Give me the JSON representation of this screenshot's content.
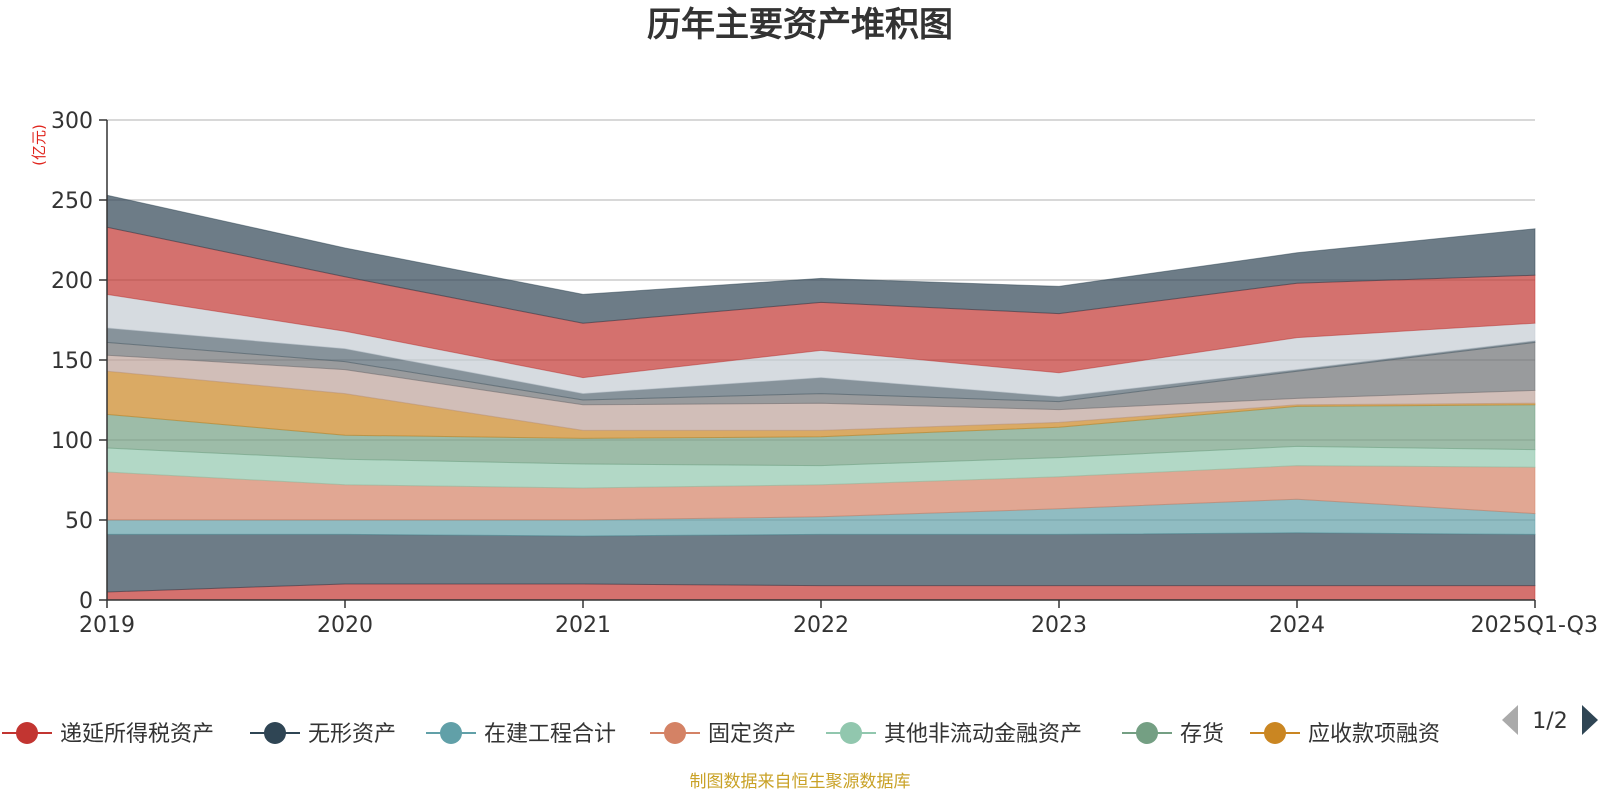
{
  "chart_data": {
    "type": "area",
    "stacked": true,
    "title": "历年主要资产堆积图",
    "unit_label": "(亿元)",
    "categories": [
      "2019",
      "2020",
      "2021",
      "2022",
      "2023",
      "2024",
      "2025Q1-Q3"
    ],
    "ylim": [
      0,
      300
    ],
    "yticks": [
      0,
      50,
      100,
      150,
      200,
      250,
      300
    ],
    "grid": true,
    "series": [
      {
        "name": "递延所得税资产",
        "color": "#c23531",
        "values": [
          5,
          10,
          10,
          9,
          9,
          9,
          9
        ],
        "in_legend": true
      },
      {
        "name": "无形资产",
        "color": "#2f4554",
        "values": [
          36,
          31,
          30,
          32,
          32,
          33,
          32
        ],
        "in_legend": true
      },
      {
        "name": "在建工程合计",
        "color": "#61a0a8",
        "values": [
          9,
          9,
          10,
          11,
          16,
          21,
          13
        ],
        "in_legend": true
      },
      {
        "name": "固定资产",
        "color": "#d48265",
        "values": [
          30,
          22,
          20,
          20,
          20,
          21,
          29
        ],
        "in_legend": true
      },
      {
        "name": "其他非流动金融资产",
        "color": "#91c7ae",
        "values": [
          15,
          16,
          15,
          12,
          12,
          12,
          11
        ],
        "in_legend": true
      },
      {
        "name": "存货",
        "color": "#749f83",
        "values": [
          21,
          15,
          16,
          18,
          19,
          25,
          28
        ],
        "in_legend": true
      },
      {
        "name": "应收款项融资",
        "color": "#ca8622",
        "values": [
          27,
          26,
          5,
          4,
          3,
          1,
          1
        ],
        "in_legend": true
      },
      {
        "name": "",
        "color": "#bda29a",
        "values": [
          10,
          15,
          16,
          17,
          8,
          4,
          8
        ],
        "in_legend": false
      },
      {
        "name": "",
        "color": "#6e7074",
        "values": [
          8,
          5,
          3,
          6,
          5,
          17,
          30
        ],
        "in_legend": false
      },
      {
        "name": "",
        "color": "#546570",
        "values": [
          9,
          8,
          4,
          10,
          3,
          1,
          1
        ],
        "in_legend": false
      },
      {
        "name": "",
        "color": "#c4ccd3",
        "values": [
          21,
          11,
          10,
          17,
          15,
          20,
          11
        ],
        "in_legend": false
      },
      {
        "name": "",
        "color": "#c23531",
        "values": [
          42,
          34,
          34,
          30,
          37,
          34,
          30
        ],
        "in_legend": false
      },
      {
        "name": "",
        "color": "#2f4554",
        "values": [
          20,
          18,
          18,
          15,
          17,
          19,
          29
        ],
        "in_legend": false
      }
    ],
    "legend_placement": "bottom",
    "legend_page": "1/2",
    "source_note": "制图数据来自恒生聚源数据库"
  }
}
